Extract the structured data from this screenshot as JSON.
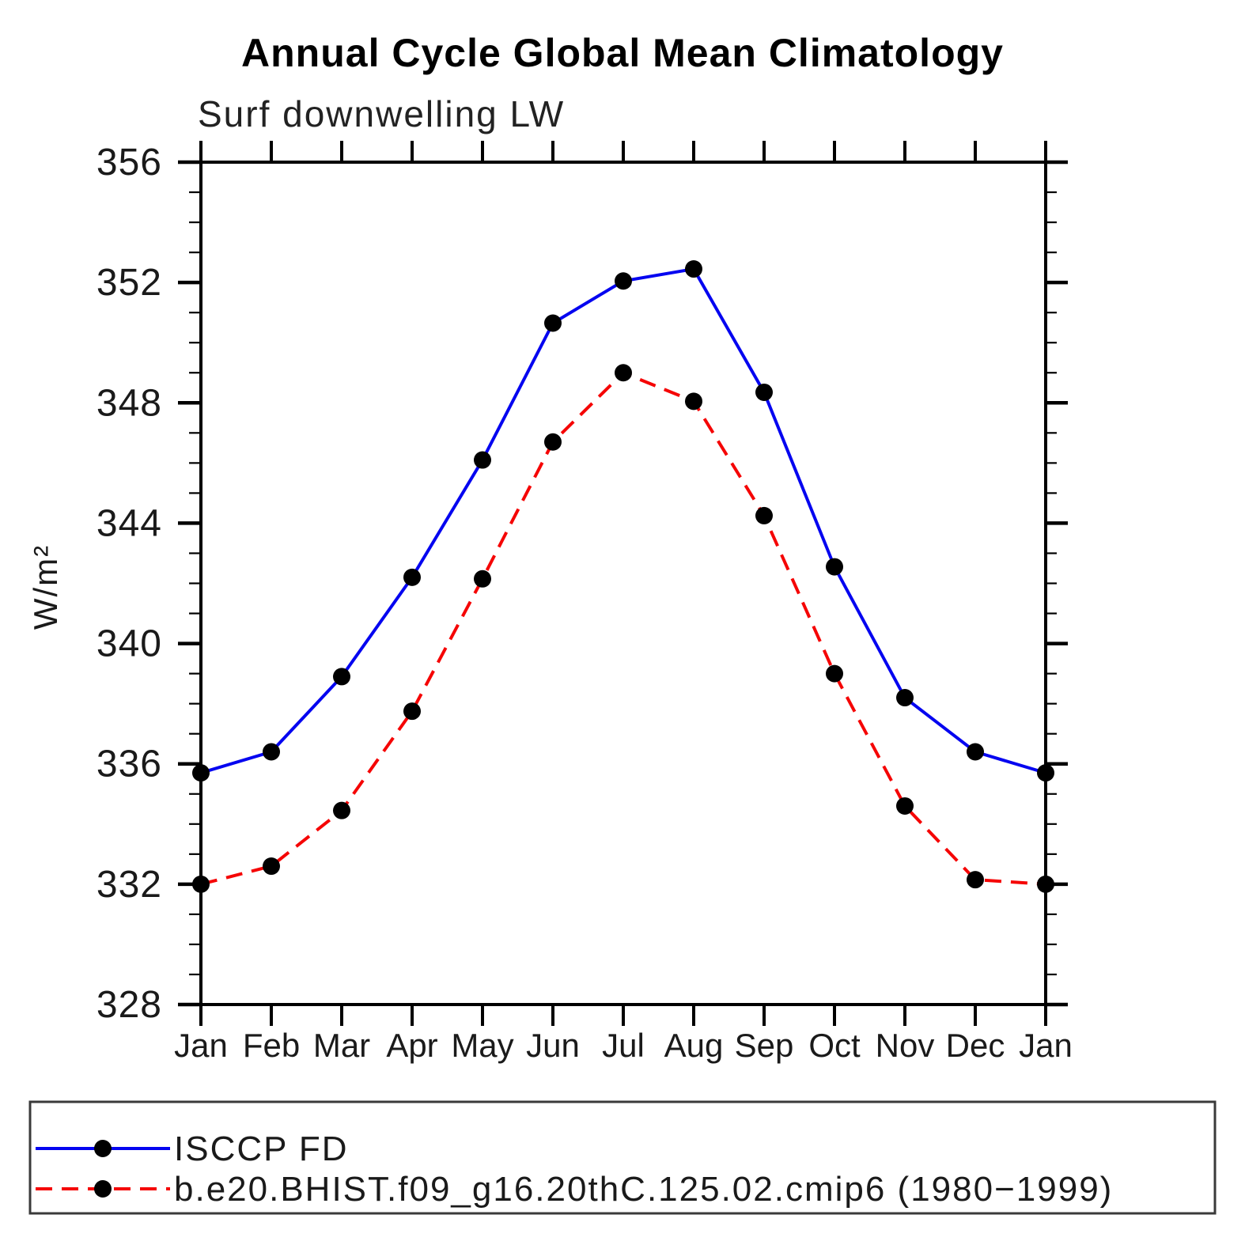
{
  "chart_data": {
    "type": "line",
    "title": "Annual Cycle Global Mean Climatology",
    "subtitle": "Surf downwelling LW",
    "ylabel": "W/m²",
    "xlabel": "",
    "categories": [
      "Jan",
      "Feb",
      "Mar",
      "Apr",
      "May",
      "Jun",
      "Jul",
      "Aug",
      "Sep",
      "Oct",
      "Nov",
      "Dec",
      "Jan"
    ],
    "ylim": [
      328,
      356
    ],
    "yticks_major": [
      328,
      332,
      336,
      340,
      344,
      348,
      352,
      356
    ],
    "ytick_minor_step": 1,
    "grid": "off",
    "legend_position": "bottom-box",
    "marker": "black-circle",
    "marker_color": "#000000",
    "series": [
      {
        "name": "ISCCP FD",
        "color": "#0505f0",
        "style": "solid",
        "values": [
          335.7,
          336.4,
          338.9,
          342.2,
          346.1,
          350.65,
          352.05,
          352.45,
          348.35,
          342.55,
          338.2,
          336.4,
          335.7
        ]
      },
      {
        "name": "b.e20.BHIST.f09_g16.20thC.125.02.cmip6 (1980−1999)",
        "color": "#f50505",
        "style": "dashed",
        "values": [
          332.0,
          332.6,
          334.45,
          337.75,
          342.15,
          346.7,
          349.0,
          348.05,
          344.25,
          339.0,
          334.6,
          332.15,
          332.0
        ]
      }
    ]
  }
}
